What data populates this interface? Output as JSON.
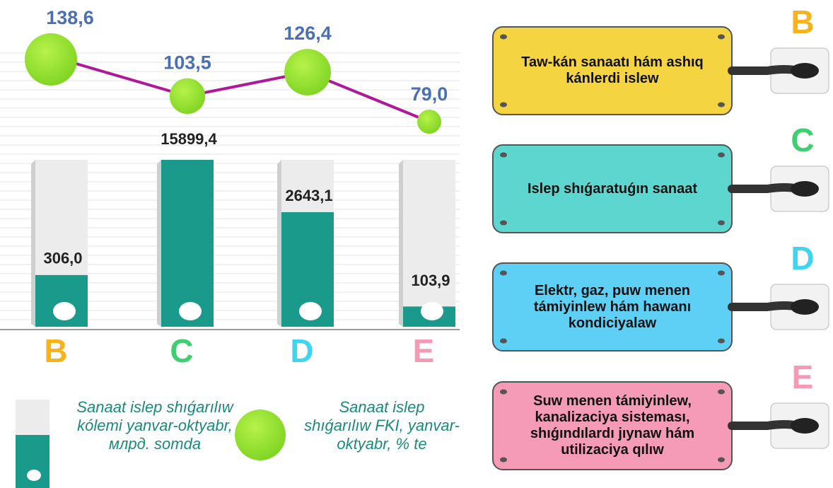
{
  "chart_data": {
    "type": "bar",
    "categories": [
      "B",
      "C",
      "D",
      "E"
    ],
    "category_colors": [
      "#f7b21c",
      "#3fcf72",
      "#3fd5f0",
      "#f59ab5"
    ],
    "y_scale": "log",
    "series": [
      {
        "name": "Sanaat islep shıǵarılıw kólemi yanvar-oktyabr, млрд. somda",
        "type": "bar",
        "color": "#1a9a8a",
        "values": [
          306.0,
          15899.4,
          2643.1,
          103.9
        ],
        "value_labels": [
          "306,0",
          "15899,4",
          "2643,1",
          "103,9"
        ]
      },
      {
        "name": "Sanaat islep shıǵarılıw FKI, yanvar-oktyabr, % te",
        "type": "line",
        "color": "#7ed321",
        "line_color": "#b0189a",
        "values": [
          138.6,
          103.5,
          126.4,
          79.0
        ],
        "value_labels": [
          "138,6",
          "103,5",
          "126,4",
          "79,0"
        ]
      }
    ],
    "sectors": [
      {
        "label": "Taw-kán sanaatı hám ashıq kánlerdi islew",
        "color": "#f5d442"
      },
      {
        "label": "Islep shıǵaratuǵın sanaat",
        "color": "#5dd6d0"
      },
      {
        "label": "Elektr, gaz, puw menen támiyinlew hám hawanı kondiciyalaw",
        "color": "#5fd0f5"
      },
      {
        "label": "Suw menen támiyinlew, kanalizaciya sisteması, shıǵındılardı jıynaw hám utilizaciya qılıw",
        "color": "#f59bb8"
      }
    ]
  }
}
